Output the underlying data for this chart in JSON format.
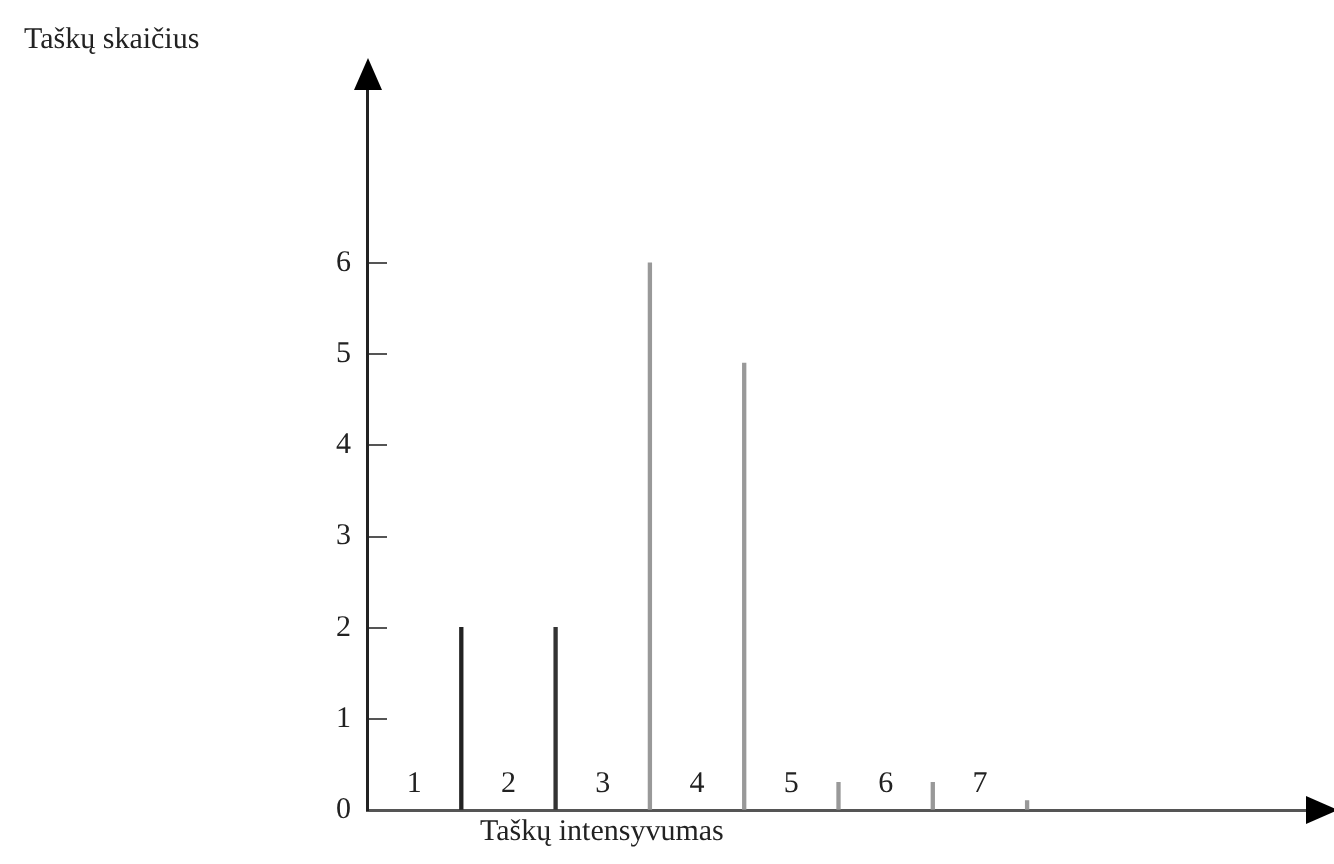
{
  "chart_data": {
    "type": "bar",
    "ylabel": "Taškų skaičius",
    "xlabel": "Taškų intensyvumas",
    "x": [
      1.5,
      2.5,
      3.5,
      4.5,
      5.5,
      6.5,
      7.5
    ],
    "values": [
      2,
      2,
      6,
      4.9,
      0.3,
      0.3,
      0.1
    ],
    "colors": [
      "#222222",
      "#333333",
      "#999999",
      "#999999",
      "#999999",
      "#999999",
      "#999999"
    ],
    "xlim": [
      0.5,
      10.5
    ],
    "xticks": [
      1,
      2,
      3,
      4,
      5,
      6,
      7
    ],
    "ylim": [
      0,
      7.9
    ],
    "yticks": [
      0,
      1,
      2,
      3,
      4,
      5,
      6
    ],
    "grid": false,
    "legend": false
  }
}
